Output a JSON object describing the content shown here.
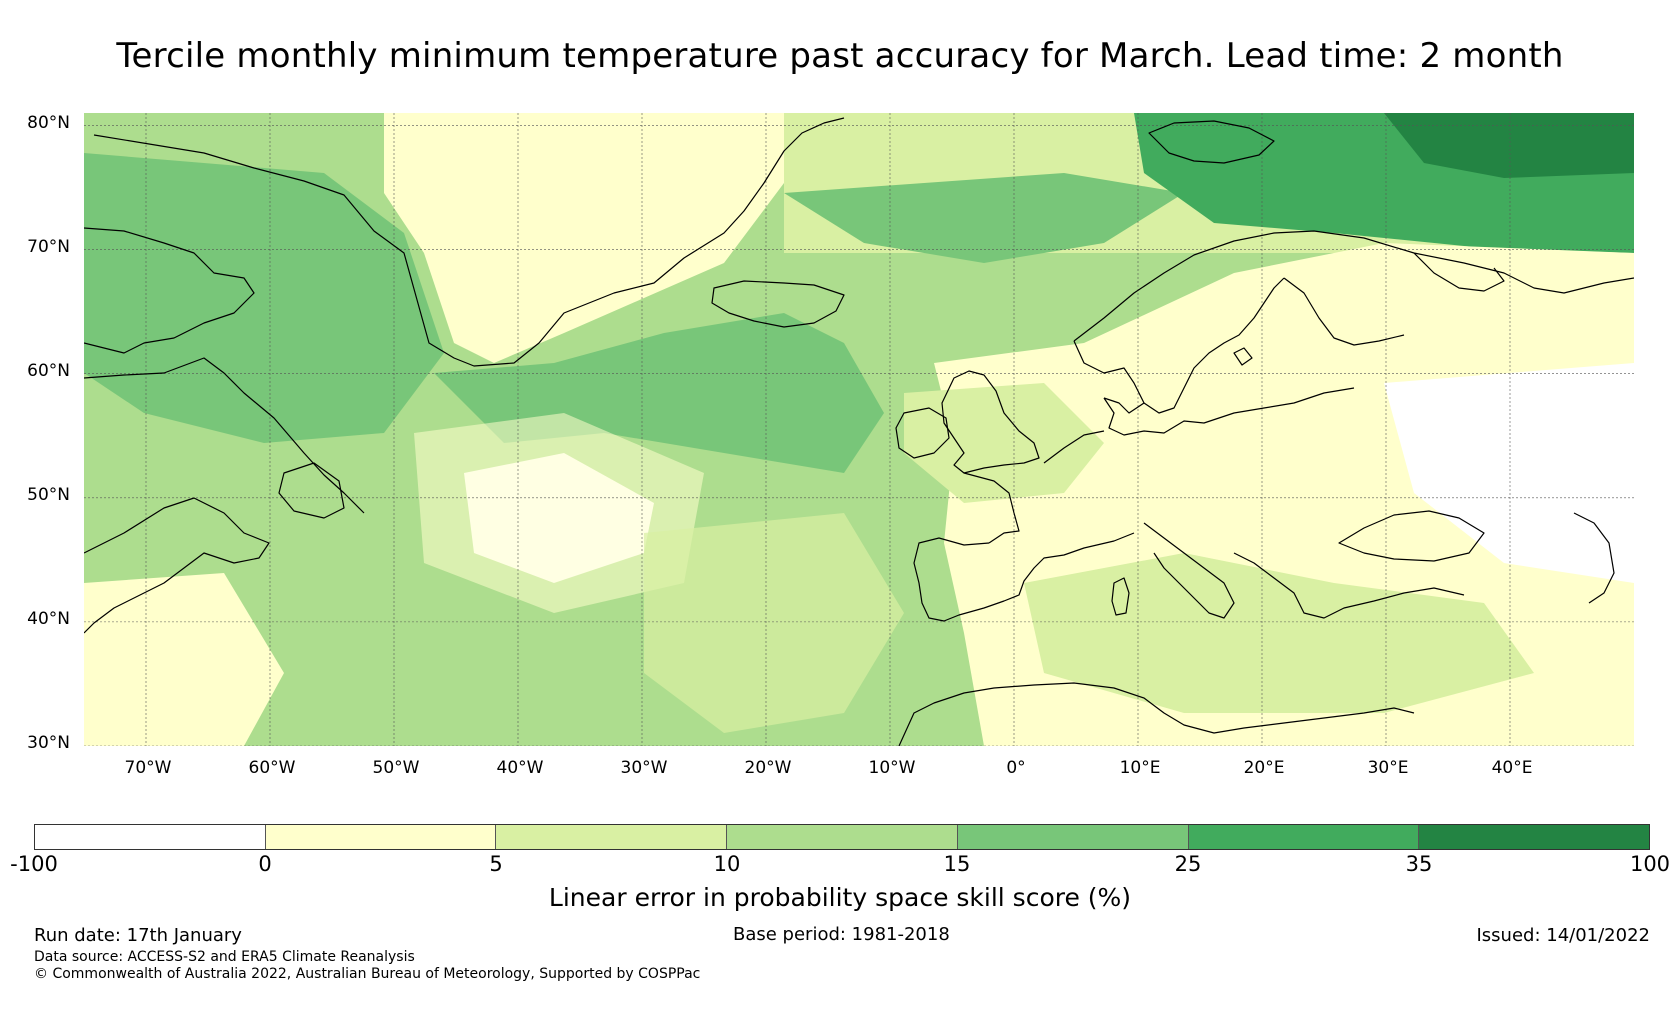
{
  "title": "Tercile monthly minimum temperature past accuracy for March. Lead time: 2 month",
  "map": {
    "lat_labels": [
      "80°N",
      "70°N",
      "60°N",
      "50°N",
      "40°N",
      "30°N"
    ],
    "lon_labels": [
      "70°W",
      "60°W",
      "50°W",
      "40°W",
      "30°W",
      "20°W",
      "10°W",
      "0°",
      "10°E",
      "20°E",
      "30°E",
      "40°E"
    ],
    "extent": {
      "lon_min": -75,
      "lon_max": 50,
      "lat_min": 30,
      "lat_max": 81
    }
  },
  "colorbar": {
    "ticks": [
      "-100",
      "0",
      "5",
      "10",
      "15",
      "25",
      "35",
      "100"
    ],
    "colors": [
      "#ffffff",
      "#ffffcc",
      "#d9f0a3",
      "#addd8e",
      "#78c679",
      "#41ab5d",
      "#238443"
    ],
    "label": "Linear error in probability space skill score (%)"
  },
  "footer": {
    "run_date": "Run date: 17th January",
    "base_period": "Base period: 1981-2018",
    "issued": "Issued: 14/01/2022",
    "data_source": "Data source: ACCESS-S2 and ERA5 Climate Reanalysis",
    "copyright": "© Commonwealth of Australia 2022, Australian Bureau of Meteorology, Supported by COSPPac"
  }
}
